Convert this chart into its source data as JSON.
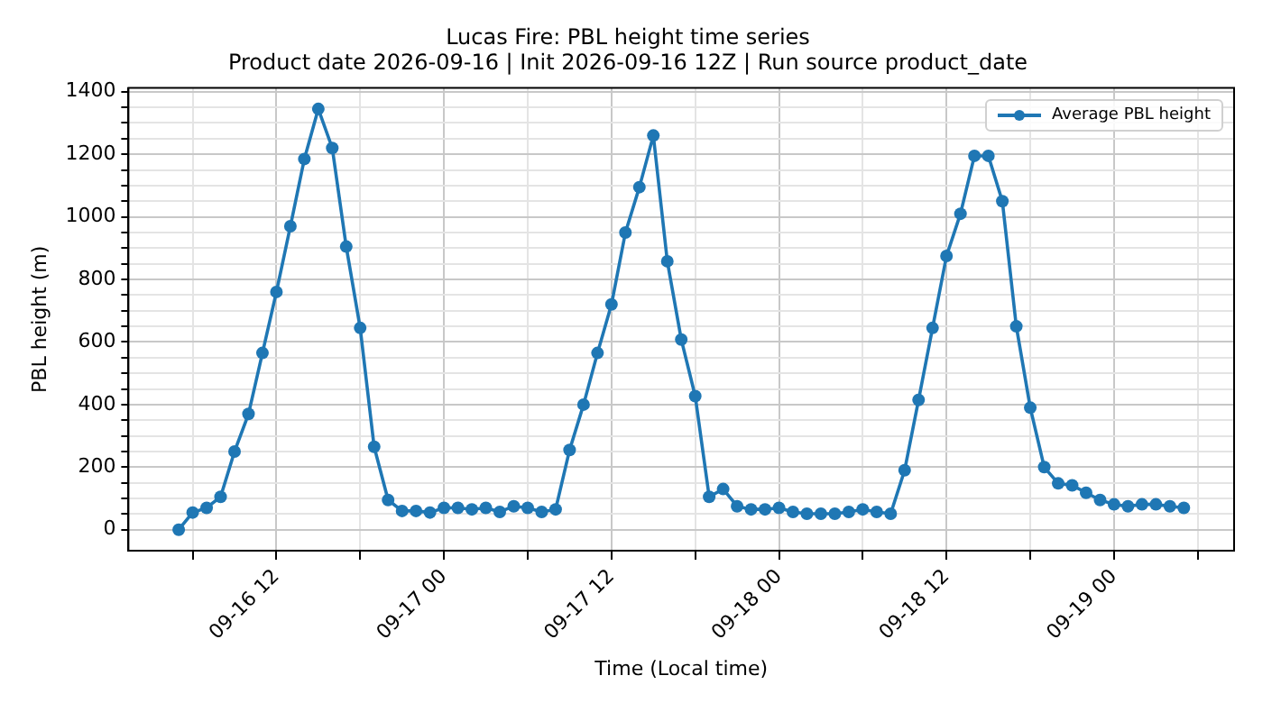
{
  "chart_data": {
    "type": "line",
    "title": "Lucas Fire: PBL height time series",
    "subtitle": "Product date 2026-09-16 | Init 2026-09-16 12Z | Run source product_date",
    "xlabel": "Time (Local time)",
    "ylabel": "PBL height (m)",
    "x": [
      "2026-09-16T05:00",
      "2026-09-16T06:00",
      "2026-09-16T07:00",
      "2026-09-16T08:00",
      "2026-09-16T09:00",
      "2026-09-16T10:00",
      "2026-09-16T11:00",
      "2026-09-16T12:00",
      "2026-09-16T13:00",
      "2026-09-16T14:00",
      "2026-09-16T15:00",
      "2026-09-16T16:00",
      "2026-09-16T17:00",
      "2026-09-16T18:00",
      "2026-09-16T19:00",
      "2026-09-16T20:00",
      "2026-09-16T21:00",
      "2026-09-16T22:00",
      "2026-09-16T23:00",
      "2026-09-17T00:00",
      "2026-09-17T01:00",
      "2026-09-17T02:00",
      "2026-09-17T03:00",
      "2026-09-17T04:00",
      "2026-09-17T05:00",
      "2026-09-17T06:00",
      "2026-09-17T07:00",
      "2026-09-17T08:00",
      "2026-09-17T09:00",
      "2026-09-17T10:00",
      "2026-09-17T11:00",
      "2026-09-17T12:00",
      "2026-09-17T13:00",
      "2026-09-17T14:00",
      "2026-09-17T15:00",
      "2026-09-17T16:00",
      "2026-09-17T17:00",
      "2026-09-17T18:00",
      "2026-09-17T19:00",
      "2026-09-17T20:00",
      "2026-09-17T21:00",
      "2026-09-17T22:00",
      "2026-09-17T23:00",
      "2026-09-18T00:00",
      "2026-09-18T01:00",
      "2026-09-18T02:00",
      "2026-09-18T03:00",
      "2026-09-18T04:00",
      "2026-09-18T05:00",
      "2026-09-18T06:00",
      "2026-09-18T07:00",
      "2026-09-18T08:00",
      "2026-09-18T09:00",
      "2026-09-18T10:00",
      "2026-09-18T11:00",
      "2026-09-18T12:00",
      "2026-09-18T13:00",
      "2026-09-18T14:00",
      "2026-09-18T15:00",
      "2026-09-18T16:00",
      "2026-09-18T17:00",
      "2026-09-18T18:00",
      "2026-09-18T19:00",
      "2026-09-18T20:00",
      "2026-09-18T21:00",
      "2026-09-18T22:00",
      "2026-09-18T23:00",
      "2026-09-19T00:00",
      "2026-09-19T01:00",
      "2026-09-19T02:00",
      "2026-09-19T03:00",
      "2026-09-19T04:00",
      "2026-09-19T05:00"
    ],
    "series": [
      {
        "name": "Average PBL height",
        "color": "#1f77b4",
        "values": [
          0,
          55,
          70,
          105,
          250,
          370,
          565,
          760,
          970,
          1185,
          1345,
          1220,
          905,
          645,
          265,
          95,
          60,
          60,
          55,
          70,
          70,
          65,
          70,
          57,
          75,
          70,
          57,
          65,
          255,
          400,
          565,
          720,
          950,
          1095,
          1260,
          858,
          608,
          427,
          105,
          130,
          75,
          65,
          65,
          70,
          57,
          51,
          51,
          51,
          57,
          65,
          57,
          51,
          190,
          415,
          645,
          875,
          1010,
          1195,
          1195,
          1050,
          650,
          390,
          200,
          148,
          142,
          118,
          95,
          81,
          75,
          81,
          81,
          75,
          70
        ]
      }
    ],
    "xlim": [
      "2026-09-16T01:24",
      "2026-09-19T08:36"
    ],
    "xticks": [
      {
        "value": "2026-09-16T06:00",
        "label": null
      },
      {
        "value": "2026-09-16T12:00",
        "label": "09-16 12"
      },
      {
        "value": "2026-09-16T18:00",
        "label": null
      },
      {
        "value": "2026-09-17T00:00",
        "label": "09-17 00"
      },
      {
        "value": "2026-09-17T06:00",
        "label": null
      },
      {
        "value": "2026-09-17T12:00",
        "label": "09-17 12"
      },
      {
        "value": "2026-09-17T18:00",
        "label": null
      },
      {
        "value": "2026-09-18T00:00",
        "label": "09-18 00"
      },
      {
        "value": "2026-09-18T06:00",
        "label": null
      },
      {
        "value": "2026-09-18T12:00",
        "label": "09-18 12"
      },
      {
        "value": "2026-09-18T18:00",
        "label": null
      },
      {
        "value": "2026-09-19T00:00",
        "label": "09-19 00"
      },
      {
        "value": "2026-09-19T06:00",
        "label": null
      }
    ],
    "ylim": [
      -67,
      1412
    ],
    "yticks": [
      0,
      {
        "value": 50,
        "label": null
      },
      {
        "value": 100,
        "label": null
      },
      {
        "value": 150,
        "label": null
      },
      200,
      {
        "value": 250,
        "label": null
      },
      {
        "value": 300,
        "label": null
      },
      {
        "value": 350,
        "label": null
      },
      400,
      {
        "value": 450,
        "label": null
      },
      {
        "value": 500,
        "label": null
      },
      {
        "value": 550,
        "label": null
      },
      600,
      {
        "value": 650,
        "label": null
      },
      {
        "value": 700,
        "label": null
      },
      {
        "value": 750,
        "label": null
      },
      800,
      {
        "value": 850,
        "label": null
      },
      {
        "value": 900,
        "label": null
      },
      {
        "value": 950,
        "label": null
      },
      1000,
      {
        "value": 1050,
        "label": null
      },
      {
        "value": 1100,
        "label": null
      },
      {
        "value": 1150,
        "label": null
      },
      1200,
      {
        "value": 1250,
        "label": null
      },
      {
        "value": 1300,
        "label": null
      },
      {
        "value": 1350,
        "label": null
      },
      1400
    ],
    "grid": true,
    "legend": "top right",
    "marker": "circle",
    "line_style": "solid"
  }
}
